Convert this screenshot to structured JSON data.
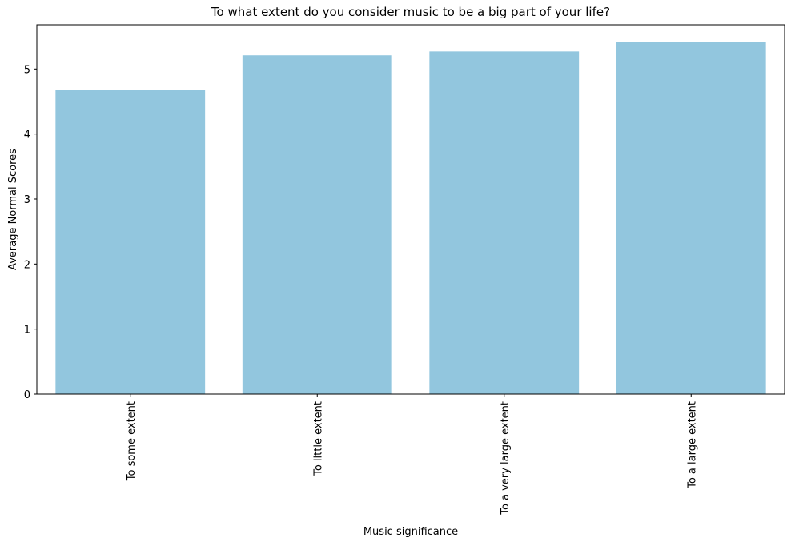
{
  "chart_data": {
    "type": "bar",
    "title": "To what extent do you consider music to be a big part of your life?",
    "xlabel": "Music significance",
    "ylabel": "Average Normal Scores",
    "categories": [
      "To some extent",
      "To little extent",
      "To a very large extent",
      "To a large extent"
    ],
    "values": [
      4.68,
      5.21,
      5.27,
      5.41
    ],
    "ylim": [
      0,
      5.68
    ],
    "yticks": [
      0,
      1,
      2,
      3,
      4,
      5
    ],
    "bar_color": "#92c6de",
    "grid": false,
    "legend": "none"
  }
}
